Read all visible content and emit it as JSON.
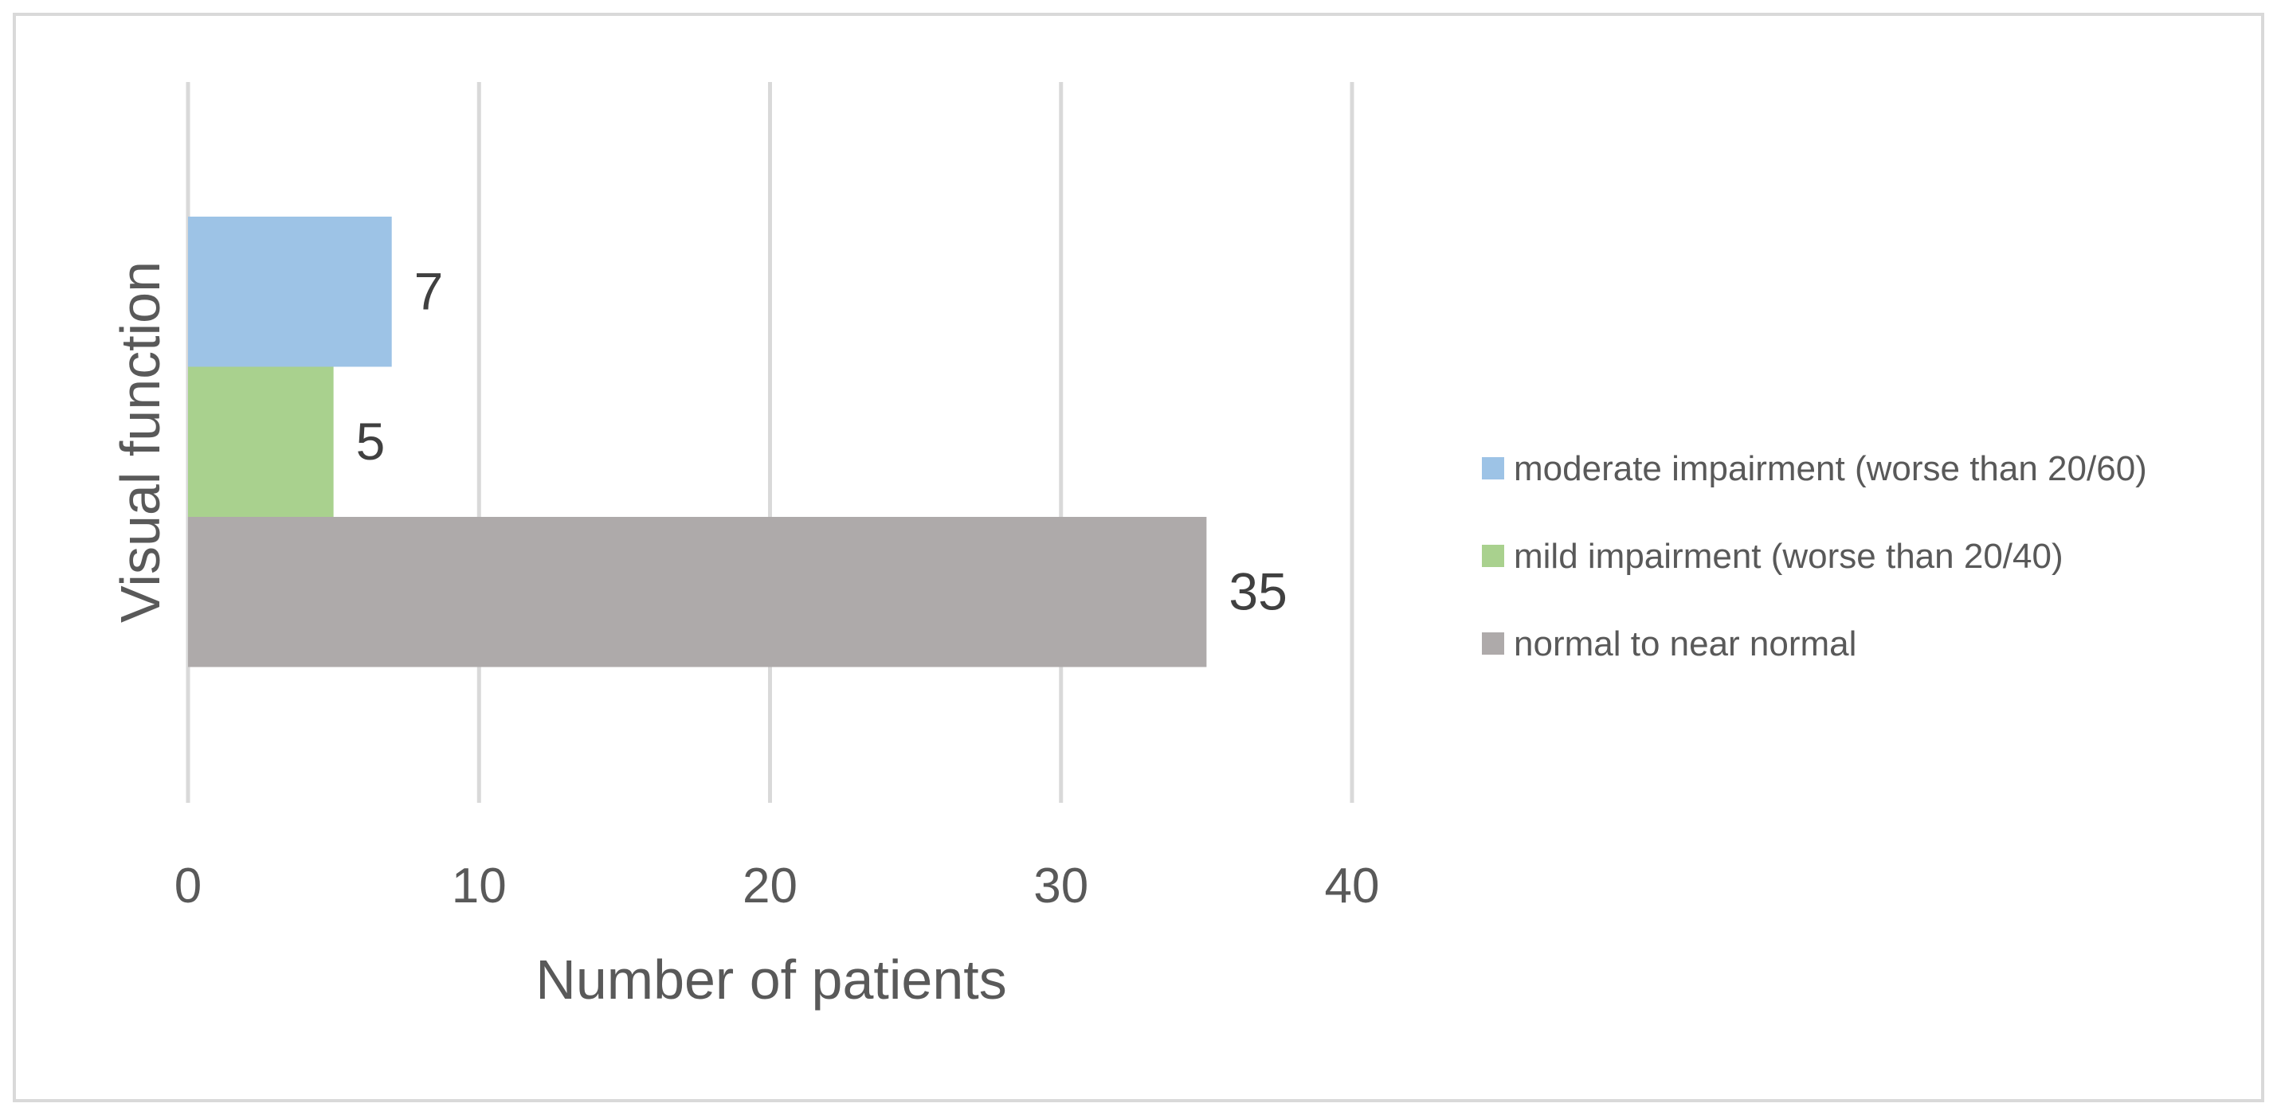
{
  "chart_data": {
    "type": "bar",
    "orientation": "horizontal",
    "xlabel": "Number of patients",
    "ylabel": "Visual function",
    "xlim": [
      0,
      40
    ],
    "x_ticks": [
      0,
      10,
      20,
      30,
      40
    ],
    "grid": true,
    "legend_position": "right",
    "data_labels": true,
    "series": [
      {
        "name": "moderate impairment (worse than 20/60)",
        "value": 7,
        "color": "#9DC3E6"
      },
      {
        "name": "mild impairment (worse than 20/40)",
        "value": 5,
        "color": "#A9D18E"
      },
      {
        "name": "normal to near normal",
        "value": 35,
        "color": "#AEAAAA"
      }
    ]
  }
}
